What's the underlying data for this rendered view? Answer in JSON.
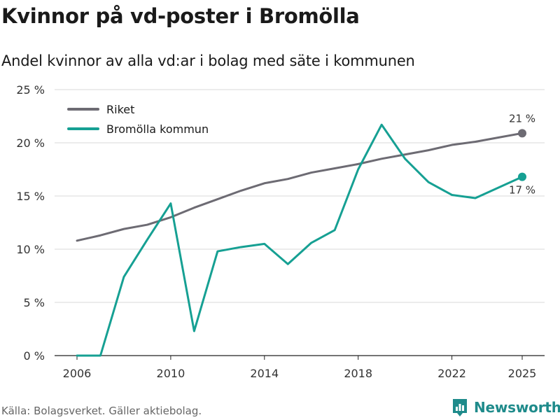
{
  "chart_data": {
    "type": "line",
    "title": "Kvinnor på vd-poster i Bromölla",
    "subtitle": "Andel kvinnor av alla vd:ar i bolag med säte i kommunen",
    "xlabel": "",
    "ylabel": "",
    "ylim": [
      0,
      25
    ],
    "yticks": [
      0,
      5,
      10,
      15,
      20,
      25
    ],
    "ytick_labels": [
      "0 %",
      "5 %",
      "10 %",
      "15 %",
      "20 %",
      "25 %"
    ],
    "xlim": [
      2005,
      2026
    ],
    "xticks": [
      2006,
      2010,
      2014,
      2018,
      2022,
      2025
    ],
    "xtick_labels": [
      "2006",
      "2010",
      "2014",
      "2018",
      "2022",
      "2025"
    ],
    "x": [
      2006,
      2007,
      2008,
      2009,
      2010,
      2011,
      2012,
      2013,
      2014,
      2015,
      2016,
      2017,
      2018,
      2019,
      2020,
      2021,
      2022,
      2023,
      2024,
      2025
    ],
    "grid": true,
    "legend": "top-left",
    "series": [
      {
        "name": "Riket",
        "color": "#6d6b73",
        "values": [
          10.8,
          11.3,
          11.9,
          12.3,
          13.0,
          13.9,
          14.7,
          15.5,
          16.2,
          16.6,
          17.2,
          17.6,
          18.0,
          18.5,
          18.9,
          19.3,
          19.8,
          20.1,
          20.5,
          20.9
        ],
        "end_label": "21 %"
      },
      {
        "name": "Bromölla kommun",
        "color": "#16a093",
        "values": [
          0.0,
          0.0,
          7.4,
          10.9,
          14.3,
          2.3,
          9.8,
          10.2,
          10.5,
          8.6,
          10.6,
          11.8,
          17.5,
          21.7,
          18.5,
          16.3,
          15.1,
          14.8,
          null,
          16.8
        ],
        "end_label": "17 %"
      }
    ]
  },
  "footer": {
    "source": "Källa: Bolagsverket. Gäller aktiebolag.",
    "brand": "Newsworthy",
    "brand_color": "#1f8b8b"
  },
  "icons": {
    "brand_logo": "newsworthy-logo-icon"
  }
}
